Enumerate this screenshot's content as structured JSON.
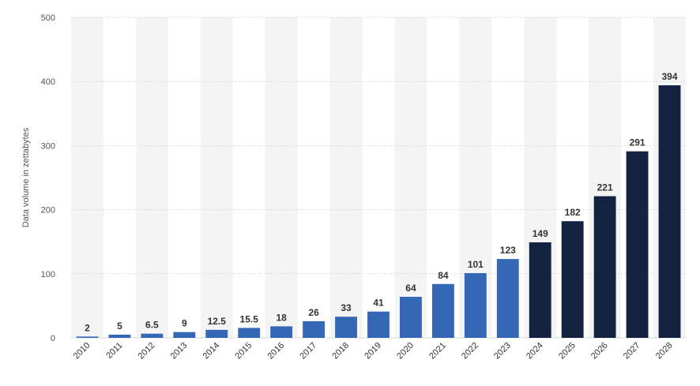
{
  "chart_data": {
    "type": "bar",
    "ylabel": "Data volume in zettabytes",
    "categories": [
      "2010",
      "2011",
      "2012",
      "2013",
      "2014",
      "2015",
      "2016",
      "2017",
      "2018",
      "2019",
      "2020",
      "2021",
      "2022",
      "2023",
      "2024",
      "2025",
      "2026",
      "2027",
      "2028"
    ],
    "values": [
      2,
      5,
      6.5,
      9,
      12.5,
      15.5,
      18,
      26,
      33,
      41,
      64,
      84,
      101,
      123,
      149,
      182,
      221,
      291,
      394
    ],
    "value_labels": [
      "2",
      "5",
      "6.5",
      "9",
      "12.5",
      "15.5",
      "18",
      "26",
      "33",
      "41",
      "64",
      "84",
      "101",
      "123",
      "149",
      "182",
      "221",
      "291",
      "394"
    ],
    "y_ticks": [
      "0",
      "100",
      "200",
      "300",
      "400",
      "500"
    ],
    "ylim": [
      0,
      500
    ],
    "grid": true,
    "colors": {
      "actual": "#3467b5",
      "forecast": "#13223f",
      "band": "#f4f4f4",
      "grid": "#d9d9d9"
    },
    "forecast_from_index": 14
  }
}
